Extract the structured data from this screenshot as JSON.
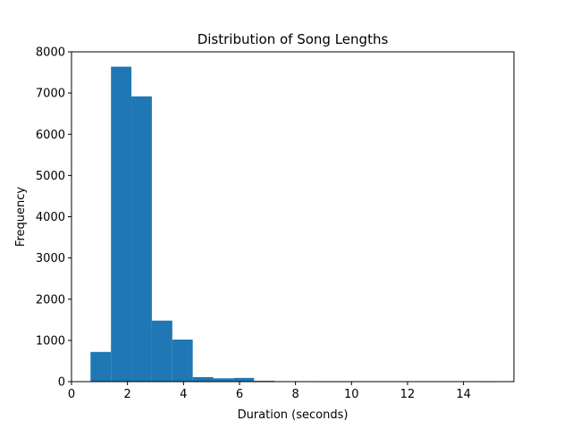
{
  "chart_data": {
    "type": "bar",
    "title": "Distribution of Song Lengths",
    "xlabel": "Duration (seconds)",
    "ylabel": "Frequency",
    "xlim": [
      0,
      15.8
    ],
    "ylim": [
      0,
      8000
    ],
    "xticks": [
      "0",
      "2",
      "4",
      "6",
      "8",
      "10",
      "12",
      "14"
    ],
    "yticks": [
      "0",
      "1000",
      "2000",
      "3000",
      "4000",
      "5000",
      "6000",
      "7000",
      "8000"
    ],
    "grid": false,
    "bar_color": "#1f77b4",
    "bins": [
      {
        "x0": 0.68,
        "x1": 1.41,
        "value": 720
      },
      {
        "x0": 1.41,
        "x1": 2.14,
        "value": 7640
      },
      {
        "x0": 2.14,
        "x1": 2.87,
        "value": 6920
      },
      {
        "x0": 2.87,
        "x1": 3.6,
        "value": 1480
      },
      {
        "x0": 3.6,
        "x1": 4.33,
        "value": 1020
      },
      {
        "x0": 4.33,
        "x1": 5.06,
        "value": 110
      },
      {
        "x0": 5.06,
        "x1": 5.79,
        "value": 80
      },
      {
        "x0": 5.79,
        "x1": 6.52,
        "value": 90
      },
      {
        "x0": 6.52,
        "x1": 7.25,
        "value": 20
      },
      {
        "x0": 7.25,
        "x1": 7.98,
        "value": 5
      },
      {
        "x0": 7.98,
        "x1": 8.71,
        "value": 2
      },
      {
        "x0": 8.71,
        "x1": 9.44,
        "value": 1
      },
      {
        "x0": 9.44,
        "x1": 10.17,
        "value": 1
      },
      {
        "x0": 10.17,
        "x1": 10.9,
        "value": 0
      },
      {
        "x0": 10.9,
        "x1": 11.63,
        "value": 0
      },
      {
        "x0": 11.63,
        "x1": 12.36,
        "value": 0
      },
      {
        "x0": 12.36,
        "x1": 13.09,
        "value": 0
      },
      {
        "x0": 13.09,
        "x1": 13.82,
        "value": 0
      },
      {
        "x0": 13.82,
        "x1": 14.55,
        "value": 0
      },
      {
        "x0": 14.55,
        "x1": 15.28,
        "value": 1
      }
    ]
  }
}
